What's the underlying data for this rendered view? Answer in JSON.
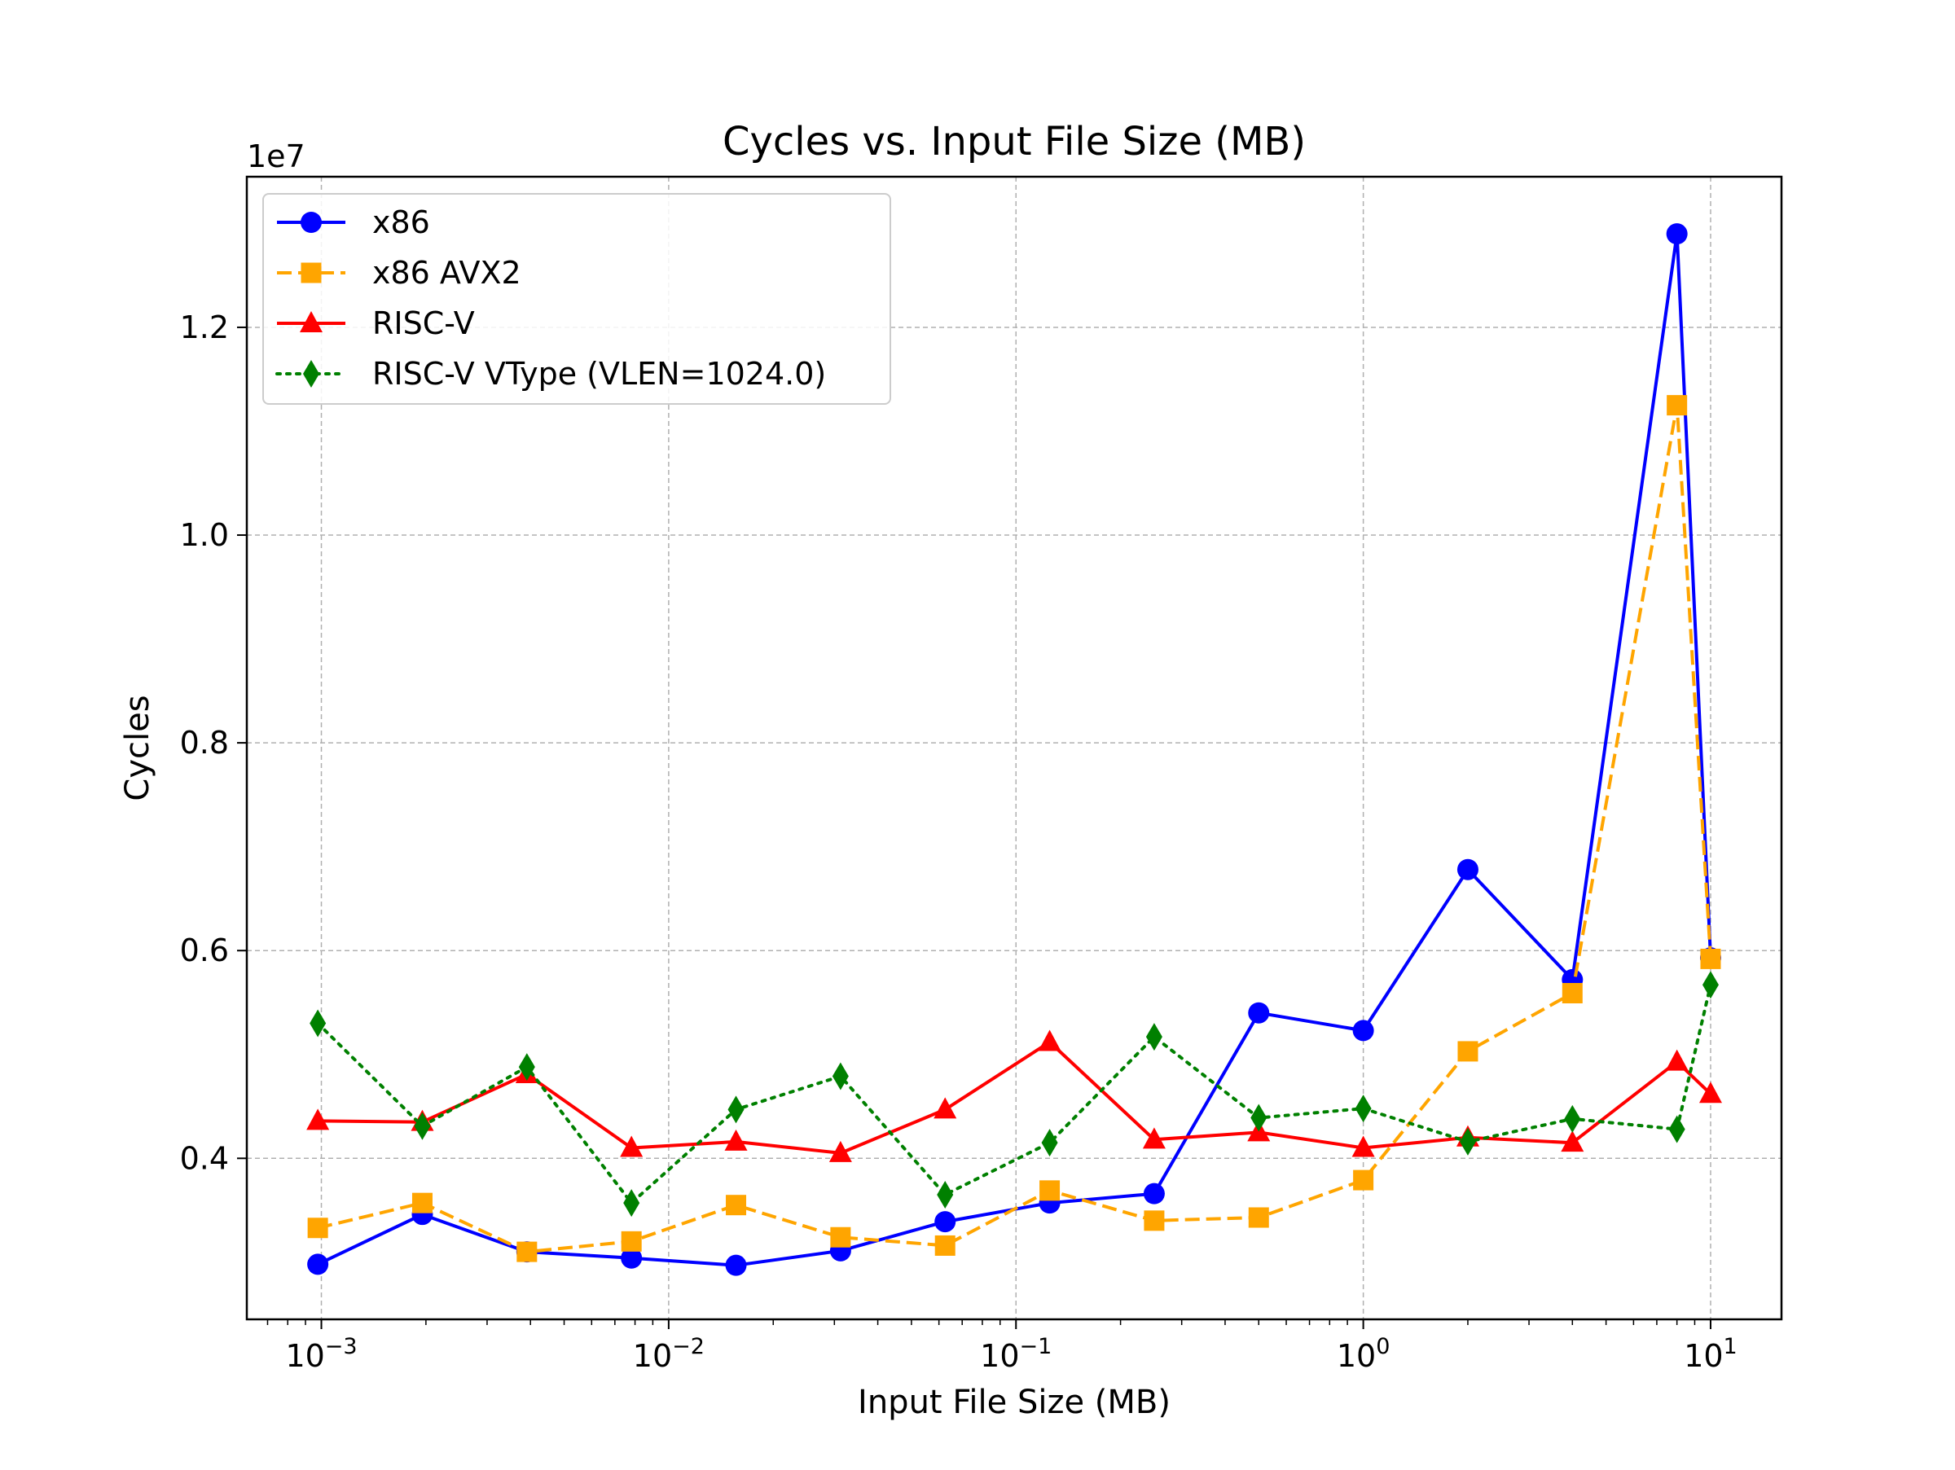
{
  "chart_data": {
    "type": "line",
    "title": "Cycles vs. Input File Size (MB)",
    "xlabel": "Input File Size (MB)",
    "ylabel": "Cycles",
    "y_offset_label": "1e7",
    "x_scale": "log",
    "xlim": [
      0.00061,
      16
    ],
    "ylim": [
      2450000,
      13450000
    ],
    "grid": true,
    "legend_position": "top-left",
    "x_ticks": [
      {
        "value": 0.001,
        "base": "10",
        "exp": "−3"
      },
      {
        "value": 0.01,
        "base": "10",
        "exp": "−2"
      },
      {
        "value": 0.1,
        "base": "10",
        "exp": "−1"
      },
      {
        "value": 1,
        "base": "10",
        "exp": "0"
      },
      {
        "value": 10,
        "base": "10",
        "exp": "1"
      }
    ],
    "y_ticks": [
      {
        "value": 4000000,
        "label": "0.4"
      },
      {
        "value": 6000000,
        "label": "0.6"
      },
      {
        "value": 8000000,
        "label": "0.8"
      },
      {
        "value": 10000000,
        "label": "1.0"
      },
      {
        "value": 12000000,
        "label": "1.2"
      }
    ],
    "x": [
      0.0009766,
      0.001953,
      0.003906,
      0.007813,
      0.015625,
      0.03125,
      0.0625,
      0.125,
      0.25,
      0.5,
      1,
      2,
      4,
      8,
      10
    ],
    "series": [
      {
        "name": "x86",
        "color": "#0000ff",
        "marker": "circle",
        "linestyle": "solid",
        "values": [
          2980000,
          3460000,
          3100000,
          3040000,
          2970000,
          3110000,
          3390000,
          3570000,
          3660000,
          5400000,
          5230000,
          6780000,
          5720000,
          12900000,
          5930000
        ]
      },
      {
        "name": "x86 AVX2",
        "color": "#ffa500",
        "marker": "square",
        "linestyle": "dashed",
        "values": [
          3330000,
          3570000,
          3100000,
          3200000,
          3550000,
          3240000,
          3160000,
          3690000,
          3400000,
          3430000,
          3790000,
          5030000,
          5590000,
          11250000,
          5920000
        ]
      },
      {
        "name": "RISC-V",
        "color": "#ff0000",
        "marker": "triangle",
        "linestyle": "solid",
        "values": [
          4360000,
          4350000,
          4810000,
          4100000,
          4160000,
          4050000,
          4470000,
          5120000,
          4180000,
          4250000,
          4100000,
          4200000,
          4150000,
          4930000,
          4620000
        ]
      },
      {
        "name": "RISC-V VType (VLEN=1024.0)",
        "color": "#008000",
        "marker": "diamond",
        "linestyle": "dotted",
        "values": [
          5300000,
          4310000,
          4880000,
          3570000,
          4470000,
          4790000,
          3650000,
          4150000,
          5170000,
          4390000,
          4480000,
          4160000,
          4380000,
          4280000,
          5670000
        ]
      }
    ]
  }
}
